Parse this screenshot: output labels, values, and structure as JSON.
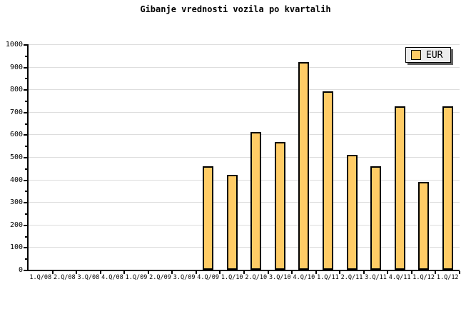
{
  "title": "Gibanje vrednosti vozila po kvartalih",
  "legend": {
    "label": "EUR"
  },
  "colors": {
    "background": "#FFFFFF",
    "bar_fill": "#FFCC66",
    "bar_border": "#000000",
    "grid": "#DDDDDD",
    "axis": "#000000",
    "legend_bg": "#ECECEC",
    "legend_shadow": "#606060",
    "text": "#000000"
  },
  "chart_data": {
    "type": "bar",
    "title": "Gibanje vrednosti vozila po kvartalih",
    "categories": [
      "1.Q/08",
      "2.Q/08",
      "3.Q/08",
      "4.Q/08",
      "1.Q/09",
      "2.Q/09",
      "3.Q/09",
      "4.Q/09",
      "1.Q/10",
      "2.Q/10",
      "3.Q/10",
      "4.Q/10",
      "1.Q/11",
      "2.Q/11",
      "3.Q/11",
      "4.Q/11",
      "1.Q/12",
      "1.Q/12"
    ],
    "series": [
      {
        "name": "EUR",
        "values": [
          null,
          null,
          null,
          null,
          null,
          null,
          null,
          460,
          420,
          610,
          565,
          920,
          790,
          510,
          460,
          725,
          390,
          725
        ]
      }
    ],
    "xlabel": "",
    "ylabel": "",
    "ylim": [
      0,
      1000
    ],
    "ytick_step": 100,
    "minor_ytick_step": 50,
    "yticks": [
      0,
      100,
      200,
      300,
      400,
      500,
      600,
      700,
      800,
      900,
      1000
    ],
    "grid": true,
    "legend_position": "top-right"
  }
}
